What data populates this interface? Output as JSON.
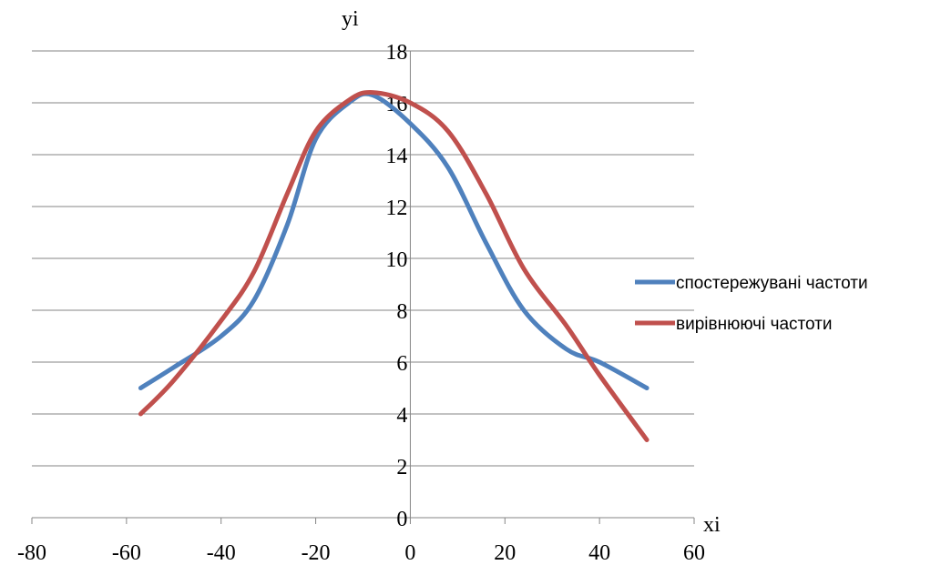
{
  "chart_data": {
    "type": "line",
    "title": "",
    "xlabel": "xi",
    "ylabel": "yi",
    "xlim": [
      -80,
      60
    ],
    "ylim": [
      0,
      18
    ],
    "xticks": [
      -80,
      -60,
      -40,
      -20,
      0,
      20,
      40,
      60
    ],
    "yticks": [
      0,
      2,
      4,
      6,
      8,
      10,
      12,
      14,
      16,
      18
    ],
    "grid": "horizontal",
    "legend_position": "right",
    "smooth": true,
    "series": [
      {
        "name": "спостережувані частоти",
        "color": "#4F81BD",
        "x": [
          -57,
          -50,
          -40,
          -33,
          -26,
          -20,
          -13,
          -8,
          0,
          8,
          16,
          24,
          33,
          40,
          50
        ],
        "y": [
          5,
          5.8,
          7,
          8.4,
          11.3,
          14.6,
          16,
          16.3,
          15.2,
          13.5,
          10.6,
          8,
          6.5,
          6,
          5
        ]
      },
      {
        "name": "вирівнюючі частоти",
        "color": "#C0504D",
        "x": [
          -57,
          -50,
          -40,
          -33,
          -26,
          -20,
          -13,
          -8,
          0,
          8,
          16,
          24,
          33,
          40,
          50
        ],
        "y": [
          4,
          5.3,
          7.6,
          9.5,
          12.5,
          14.9,
          16.1,
          16.4,
          16,
          14.9,
          12.5,
          9.6,
          7.4,
          5.5,
          3
        ]
      }
    ]
  }
}
